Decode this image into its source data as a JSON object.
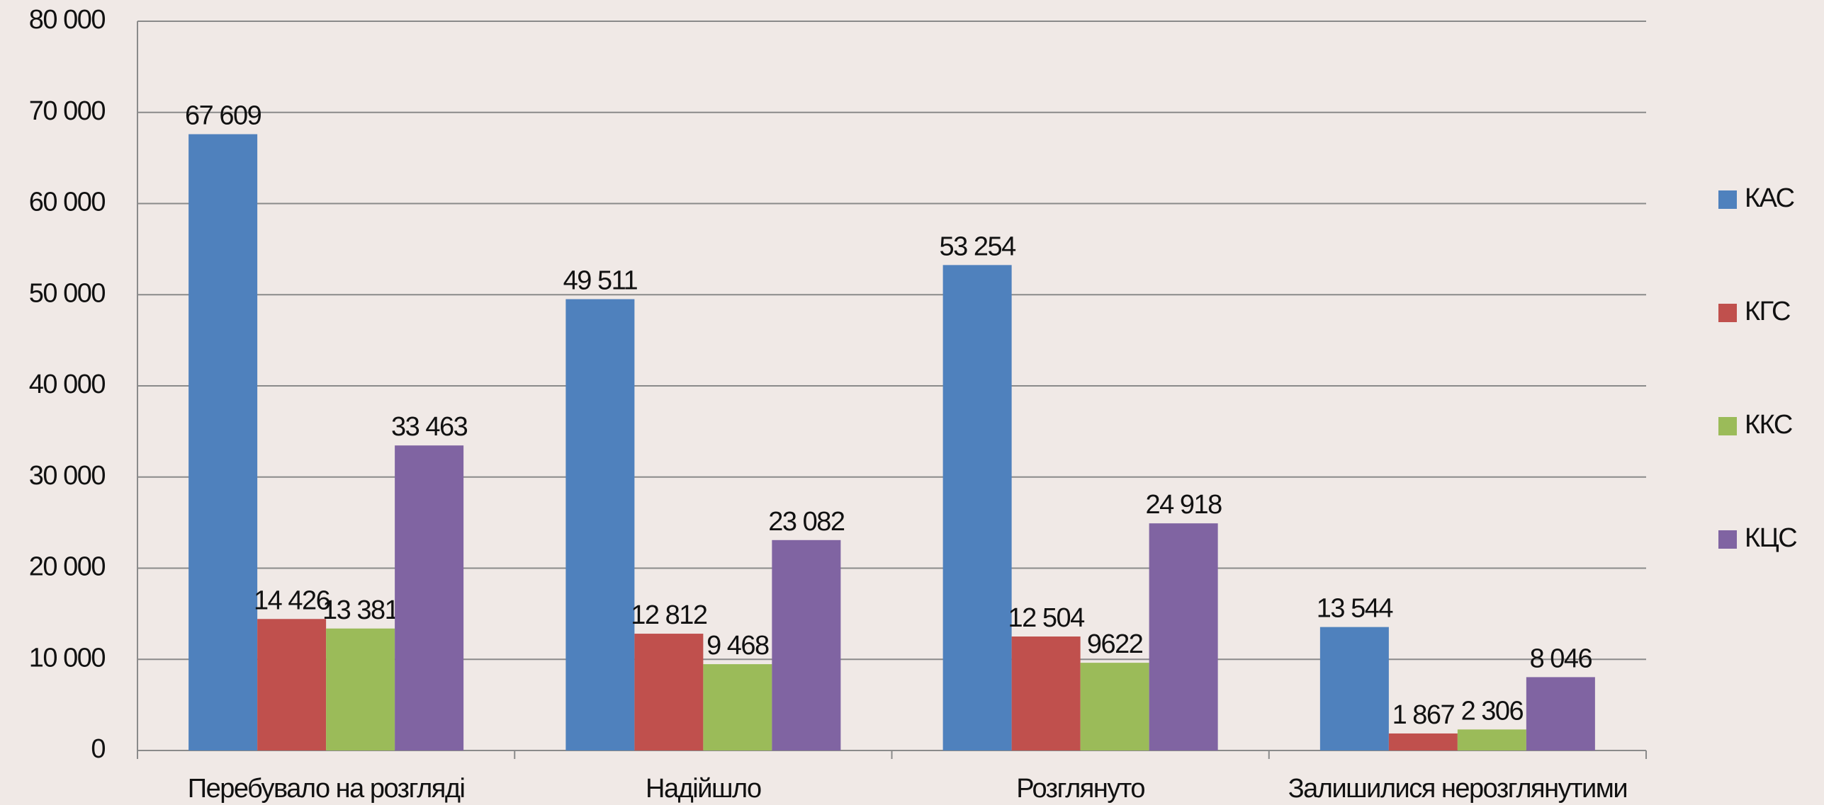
{
  "chart_data": {
    "type": "bar",
    "categories": [
      "Перебувало на розгляді",
      "Надійшло",
      "Розглянуто",
      "Залишилися нерозглянутими"
    ],
    "series": [
      {
        "name": "КАС",
        "color": "#4f81bd",
        "values": [
          67609,
          49511,
          53254,
          13544
        ],
        "value_labels": [
          "67 609",
          "49 511",
          "53 254",
          "13 544"
        ]
      },
      {
        "name": "КГС",
        "color": "#c0504d",
        "values": [
          14426,
          12812,
          12504,
          1867
        ],
        "value_labels": [
          "14 426",
          "12 812",
          "12 504",
          "1 867"
        ]
      },
      {
        "name": "ККС",
        "color": "#9bbb59",
        "values": [
          13381,
          9468,
          9622,
          2306
        ],
        "value_labels": [
          "13 381",
          "9 468",
          "9622",
          "2 306"
        ]
      },
      {
        "name": "КЦС",
        "color": "#8064a2",
        "values": [
          33463,
          23082,
          24918,
          8046
        ],
        "value_labels": [
          "33 463",
          "23 082",
          "24 918",
          "8 046"
        ]
      }
    ],
    "ylim": [
      0,
      80000
    ],
    "yticks": [
      0,
      {
        "value": 10000,
        "label": "10 000"
      },
      {
        "value": 20000,
        "label": "20 000"
      },
      {
        "value": 30000,
        "label": "30 000"
      },
      {
        "value": 40000,
        "label": "40 000"
      },
      {
        "value": 50000,
        "label": "50 000"
      },
      {
        "value": 60000,
        "label": "60 000"
      },
      {
        "value": 70000,
        "label": "70 000"
      },
      {
        "value": 80000,
        "label": "80 000"
      }
    ],
    "grid": true,
    "legend": "right"
  }
}
